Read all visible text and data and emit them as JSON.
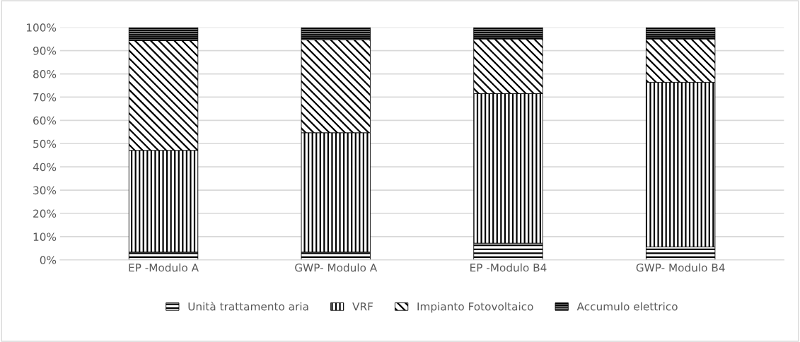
{
  "chart_data": {
    "type": "bar",
    "stacked": true,
    "categories": [
      "EP -Modulo A",
      "GWP- Modulo A",
      "EP -Modulo B4",
      "GWP- Modulo B4"
    ],
    "series": [
      {
        "name": "Unità trattamento aria",
        "color": "#000000",
        "values": [
          3.4,
          3.4,
          7.2,
          5.6
        ]
      },
      {
        "name": "VRF",
        "color": "#000000",
        "values": [
          43.7,
          51.3,
          64.3,
          70.8
        ]
      },
      {
        "name": "Impianto Fotovoltaico",
        "color": "#000000",
        "values": [
          47.2,
          40.0,
          23.5,
          18.6
        ]
      },
      {
        "name": "Accumulo elettrico",
        "color": "#000000",
        "values": [
          5.7,
          5.3,
          5.0,
          5.0
        ]
      }
    ],
    "ylim": [
      0,
      100
    ],
    "yticks": [
      {
        "value": 0,
        "label": "0%"
      },
      {
        "value": 10,
        "label": "10%"
      },
      {
        "value": 20,
        "label": "20%"
      },
      {
        "value": 30,
        "label": "30%"
      },
      {
        "value": 40,
        "label": "40%"
      },
      {
        "value": 50,
        "label": "50%"
      },
      {
        "value": 60,
        "label": "60%"
      },
      {
        "value": 70,
        "label": "70%"
      },
      {
        "value": 80,
        "label": "80%"
      },
      {
        "value": 90,
        "label": "90%"
      },
      {
        "value": 100,
        "label": "100%"
      }
    ],
    "grid": "y",
    "legend": "bottom"
  }
}
